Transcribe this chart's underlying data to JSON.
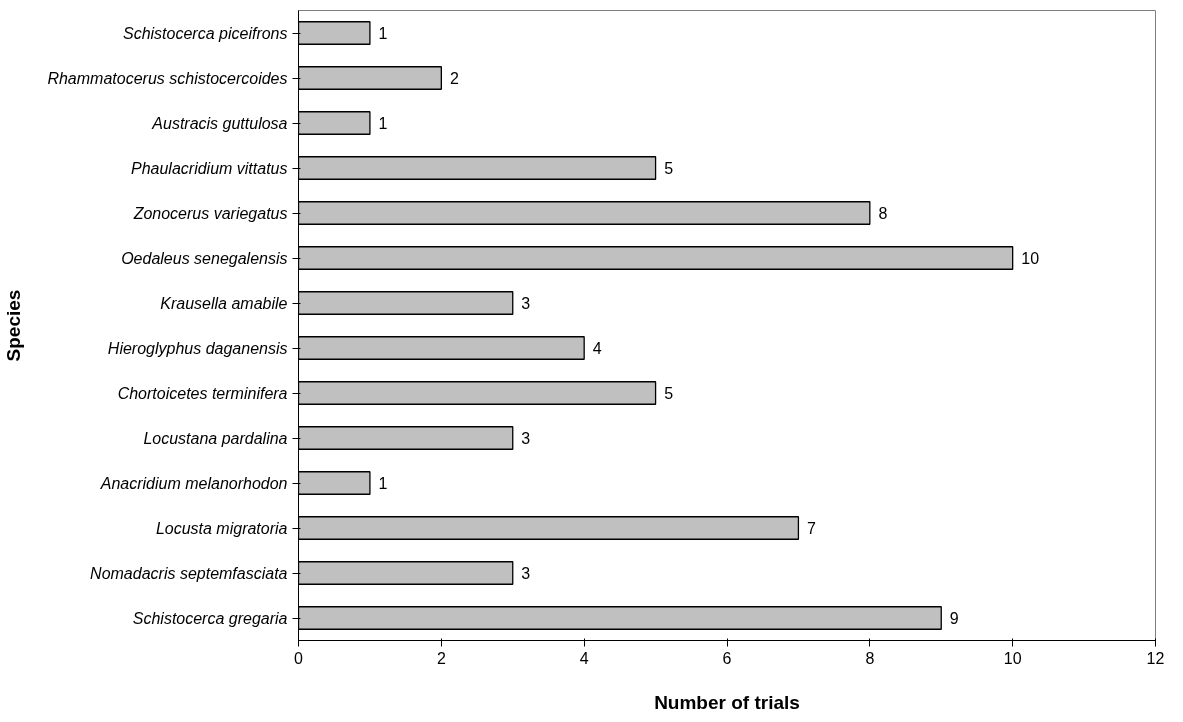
{
  "chart_data": {
    "type": "bar",
    "orientation": "horizontal",
    "xlabel": "Number of trials",
    "ylabel": "Species",
    "categories": [
      "Schistocerca piceifrons",
      "Rhammatocerus schistocercoides",
      "Austracis guttulosa",
      "Phaulacridium vittatus",
      "Zonocerus variegatus",
      "Oedaleus senegalensis",
      "Krausella amabile",
      "Hieroglyphus daganensis",
      "Chortoicetes terminifera",
      "Locustana pardalina",
      "Anacridium melanorhodon",
      "Locusta migratoria",
      "Nomadacris septemfasciata",
      "Schistocerca gregaria"
    ],
    "values": [
      1,
      2,
      1,
      5,
      8,
      10,
      3,
      4,
      5,
      3,
      1,
      7,
      3,
      9
    ],
    "color": "#c0c0c0",
    "xlim": [
      0,
      12
    ],
    "xticks": [
      0,
      2,
      4,
      6,
      8,
      10,
      12
    ],
    "grid": false,
    "data_labels": true
  }
}
